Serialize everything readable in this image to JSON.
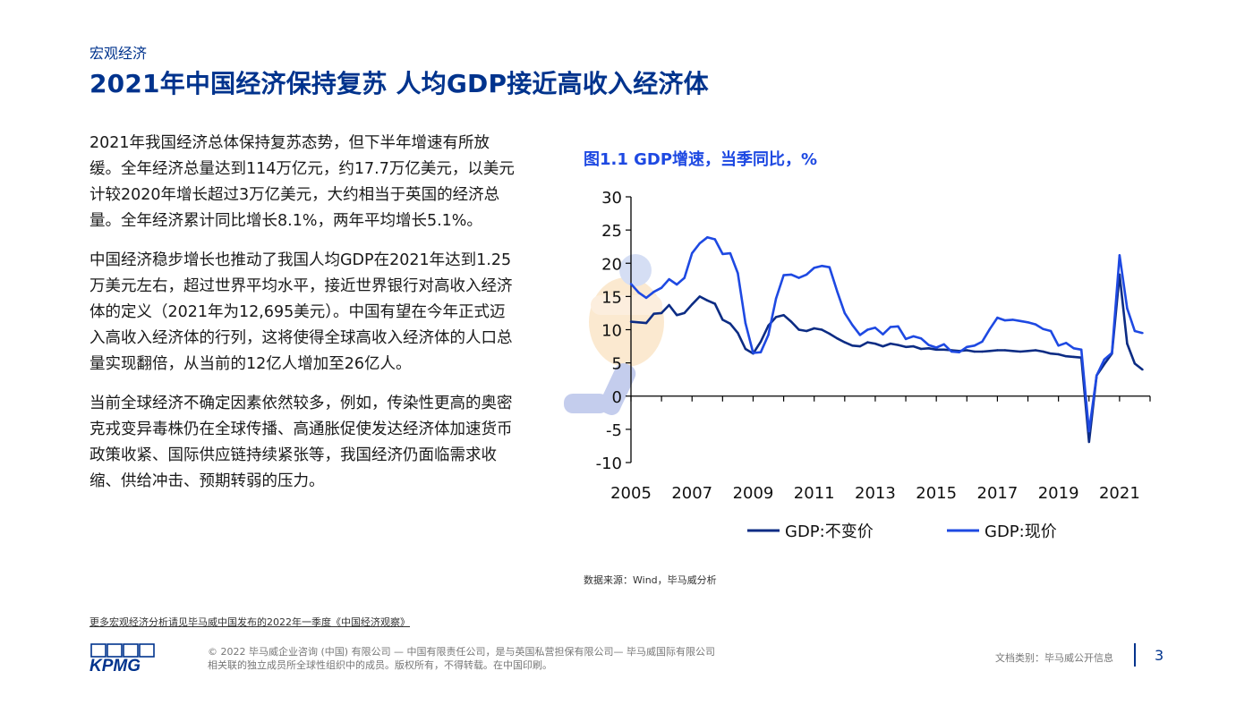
{
  "header": {
    "kicker": "宏观经济",
    "title": "2021年中国经济保持复苏 人均GDP接近高收入经济体"
  },
  "body": {
    "paragraphs": [
      "2021年我国经济总体保持复苏态势，但下半年增速有所放缓。全年经济总量达到114万亿元，约17.7万亿美元，以美元计较2020年增长超过3万亿美元，大约相当于英国的经济总量。全年经济累计同比增长8.1%，两年平均增长5.1%。",
      "中国经济稳步增长也推动了我国人均GDP在2021年达到1.25万美元左右，超过世界平均水平，接近世界银行对高收入经济体的定义（2021年为12,695美元）。中国有望在今年正式迈入高收入经济体的行列，这将使得全球高收入经济体的人口总量实现翻倍，从当前的12亿人增加至26亿人。",
      "当前全球经济不确定因素依然较多，例如，传染性更高的奥密克戎变异毒株仍在全球传播、高通胀促使发达经济体加速货币政策收紧、国际供应链持续紧张等，我国经济仍面临需求收缩、供给冲击、预期转弱的压力。"
    ]
  },
  "chart_data": {
    "type": "line",
    "title": "图1.1 GDP增速，当季同比，%",
    "xlabel": "",
    "ylabel": "",
    "xlim": [
      2005,
      2022.0
    ],
    "ylim": [
      -10,
      30
    ],
    "y_ticks": [
      30,
      25,
      20,
      15,
      10,
      5,
      0,
      -5,
      -10
    ],
    "x_ticks": [
      2005,
      2007,
      2009,
      2011,
      2013,
      2015,
      2017,
      2019,
      2021
    ],
    "x_tick_labels": [
      "2005",
      "2007",
      "2009",
      "2011",
      "2013",
      "2015",
      "2017",
      "2019",
      "2021"
    ],
    "grid": false,
    "legend_position": "bottom",
    "series": [
      {
        "name": "GDP:不变价",
        "color": "#0C2C84",
        "x": [
          2005.0,
          2005.25,
          2005.5,
          2005.75,
          2006.0,
          2006.25,
          2006.5,
          2006.75,
          2007.0,
          2007.25,
          2007.5,
          2007.75,
          2008.0,
          2008.25,
          2008.5,
          2008.75,
          2009.0,
          2009.25,
          2009.5,
          2009.75,
          2010.0,
          2010.25,
          2010.5,
          2010.75,
          2011.0,
          2011.25,
          2011.5,
          2011.75,
          2012.0,
          2012.25,
          2012.5,
          2012.75,
          2013.0,
          2013.25,
          2013.5,
          2013.75,
          2014.0,
          2014.25,
          2014.5,
          2014.75,
          2015.0,
          2015.25,
          2015.5,
          2015.75,
          2016.0,
          2016.25,
          2016.5,
          2016.75,
          2017.0,
          2017.25,
          2017.5,
          2017.75,
          2018.0,
          2018.25,
          2018.5,
          2018.75,
          2019.0,
          2019.25,
          2019.5,
          2019.75,
          2020.0,
          2020.25,
          2020.5,
          2020.75,
          2021.0,
          2021.25,
          2021.5,
          2021.75
        ],
        "values": [
          11.2,
          11.1,
          11.0,
          12.4,
          12.5,
          13.7,
          12.2,
          12.5,
          13.8,
          15.0,
          14.4,
          13.9,
          11.5,
          10.9,
          9.5,
          7.1,
          6.4,
          8.2,
          10.6,
          11.9,
          12.2,
          11.2,
          10.0,
          9.8,
          10.2,
          10.0,
          9.4,
          8.7,
          8.1,
          7.6,
          7.5,
          8.1,
          7.9,
          7.5,
          7.9,
          7.7,
          7.4,
          7.5,
          7.1,
          7.2,
          7.0,
          7.0,
          6.9,
          6.8,
          6.9,
          6.7,
          6.7,
          6.8,
          6.9,
          6.9,
          6.8,
          6.7,
          6.8,
          6.9,
          6.7,
          6.4,
          6.3,
          6.0,
          5.9,
          5.8,
          -6.9,
          3.1,
          4.8,
          6.4,
          18.3,
          7.9,
          4.9,
          4.0
        ]
      },
      {
        "name": "GDP:现价",
        "color": "#1E49E2",
        "x": [
          2005.0,
          2005.25,
          2005.5,
          2005.75,
          2006.0,
          2006.25,
          2006.5,
          2006.75,
          2007.0,
          2007.25,
          2007.5,
          2007.75,
          2008.0,
          2008.25,
          2008.5,
          2008.75,
          2009.0,
          2009.25,
          2009.5,
          2009.75,
          2010.0,
          2010.25,
          2010.5,
          2010.75,
          2011.0,
          2011.25,
          2011.5,
          2011.75,
          2012.0,
          2012.25,
          2012.5,
          2012.75,
          2013.0,
          2013.25,
          2013.5,
          2013.75,
          2014.0,
          2014.25,
          2014.5,
          2014.75,
          2015.0,
          2015.25,
          2015.5,
          2015.75,
          2016.0,
          2016.25,
          2016.5,
          2016.75,
          2017.0,
          2017.25,
          2017.5,
          2017.75,
          2018.0,
          2018.25,
          2018.5,
          2018.75,
          2019.0,
          2019.25,
          2019.5,
          2019.75,
          2020.0,
          2020.25,
          2020.5,
          2020.75,
          2021.0,
          2021.25,
          2021.5,
          2021.75
        ],
        "values": [
          16.9,
          15.6,
          14.8,
          15.7,
          16.3,
          17.6,
          16.8,
          17.8,
          21.5,
          23.0,
          23.9,
          23.6,
          21.4,
          21.5,
          18.5,
          11.0,
          6.5,
          6.6,
          9.2,
          14.7,
          18.2,
          18.3,
          17.8,
          18.3,
          19.3,
          19.6,
          19.4,
          15.8,
          12.5,
          10.7,
          9.2,
          10.0,
          10.3,
          9.3,
          10.4,
          10.5,
          8.6,
          9.0,
          8.7,
          7.7,
          7.3,
          7.8,
          6.7,
          6.6,
          7.4,
          7.6,
          8.2,
          10.1,
          11.8,
          11.4,
          11.5,
          11.3,
          11.1,
          10.8,
          10.1,
          9.8,
          7.6,
          8.0,
          7.2,
          7.0,
          -5.3,
          3.1,
          5.5,
          6.5,
          21.2,
          13.2,
          9.8,
          9.5
        ]
      }
    ]
  },
  "source": "数据来源：Wind，毕马威分析",
  "footer": {
    "more_link": "更多宏观经济分析请见毕马威中国发布的2022年一季度《中国经济观察》",
    "logo_text": "KPMG",
    "copyright_line1": "© 2022 毕马威企业咨询 (中国) 有限公司 — 中国有限责任公司，是与英国私营担保有限公司— 毕马威国际有限公司",
    "copyright_line2": "相关联的独立成员所全球性组织中的成员。版权所有，不得转载。在中国印刷。",
    "doc_class": "文档类别：毕马威公开信息",
    "page_number": "3"
  },
  "colors": {
    "brand": "#00338D",
    "accent": "#1E49E2",
    "line_constant": "#0C2C84",
    "line_current": "#1E49E2"
  }
}
